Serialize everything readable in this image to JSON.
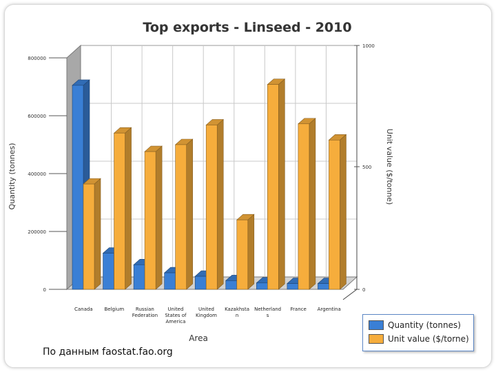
{
  "chart_data": {
    "type": "bar",
    "title": "Top exports - Linseed - 2010",
    "xlabel": "Area",
    "ylabel": "Quantity (tonnes)",
    "ylabel_right": "Unit value ($/tonne)",
    "categories": [
      [
        "Canada"
      ],
      [
        "Belgium"
      ],
      [
        "Russian",
        "Federation"
      ],
      [
        "United",
        "States of",
        "America"
      ],
      [
        "United",
        "Kingdom"
      ],
      [
        "Kazakhsta",
        "n"
      ],
      [
        "Netherland",
        "s"
      ],
      [
        "France"
      ],
      [
        "Argentina"
      ]
    ],
    "series": [
      {
        "name": "Quantity (tonnes)",
        "axis": "left",
        "color": "#3a7fd5",
        "values": [
          705000,
          125000,
          85000,
          57000,
          45000,
          30000,
          22000,
          20000,
          20000
        ]
      },
      {
        "name": "Unit value ($/tonne)",
        "axis": "right",
        "color": "#f6ad3c",
        "values": [
          455,
          675,
          595,
          625,
          710,
          300,
          885,
          715,
          645
        ]
      }
    ],
    "ylim_left": [
      0,
      800000
    ],
    "yticks_left": [
      "0",
      "200000",
      "400000",
      "600000",
      "800000"
    ],
    "ylim_right": [
      0,
      1000
    ],
    "yticks_right": [
      "0",
      "500",
      "1000"
    ],
    "grid": true,
    "legend_position": "bottom-right"
  },
  "legend": {
    "quantity_label": "Quantity (tonnes)",
    "unit_value_label": "Unit value ($/torne)"
  },
  "source_note": "По данным faostat.fao.org"
}
